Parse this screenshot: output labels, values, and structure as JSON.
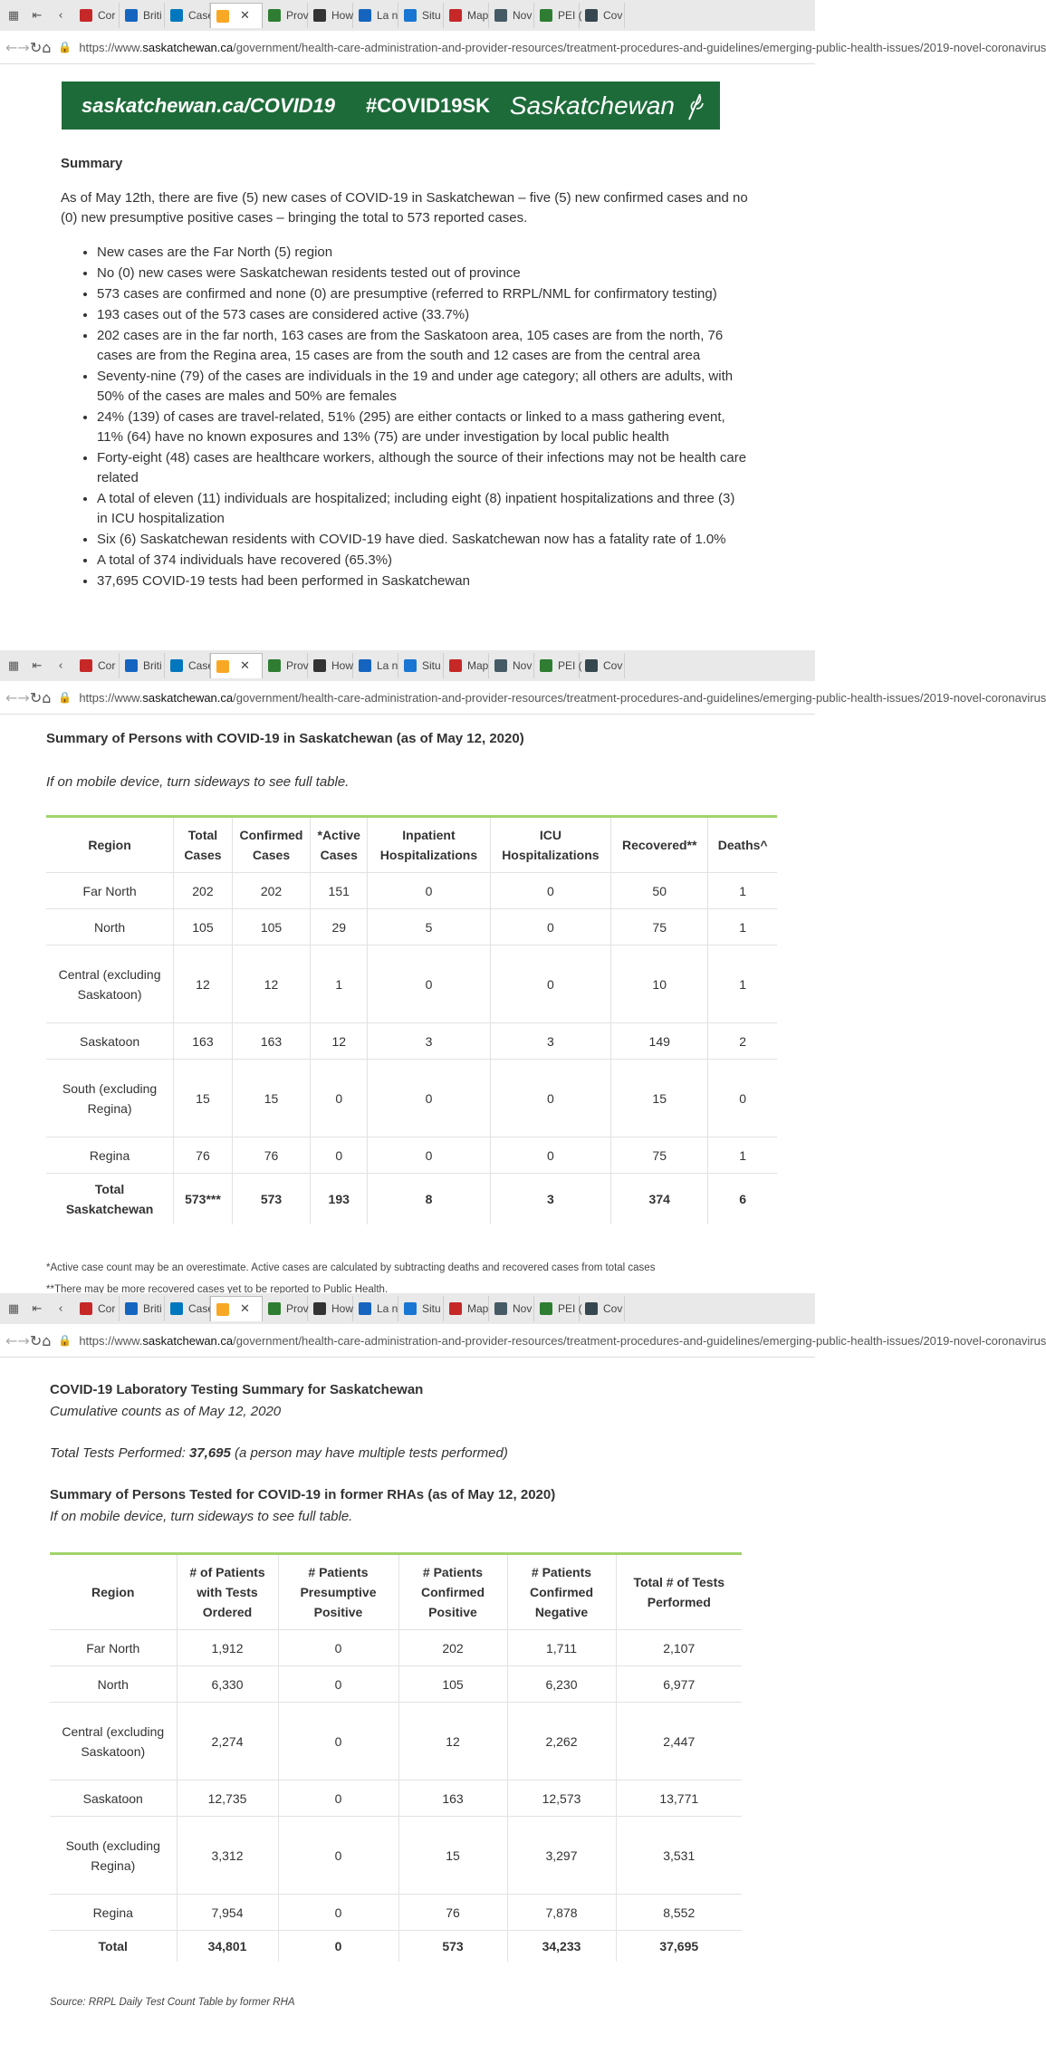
{
  "browser": {
    "tabs": [
      {
        "label": "Cor",
        "color": "#c62828"
      },
      {
        "label": "Briti",
        "color": "#1565c0"
      },
      {
        "label": "Case",
        "color": "#0277bd"
      },
      {
        "label": "",
        "color": "#f9a825",
        "active": true
      },
      {
        "label": "Prov",
        "color": "#2e7d32"
      },
      {
        "label": "How",
        "color": "#333333"
      },
      {
        "label": "La n",
        "color": "#1565c0"
      },
      {
        "label": "Situ",
        "color": "#1976d2"
      },
      {
        "label": "Map",
        "color": "#c62828"
      },
      {
        "label": "Nov",
        "color": "#455a64"
      },
      {
        "label": "PEI (",
        "color": "#2e7d32"
      },
      {
        "label": "Cov",
        "color": "#37474f"
      }
    ],
    "url_scheme": "https://www.",
    "url_domain": "saskatchewan.ca",
    "url_path": "/government/health-care-administration-and-provider-resources/treatment-procedures-and-guidelines/emerging-public-health-issues/2019-novel-coronavirus"
  },
  "banner": {
    "url_text": "saskatchewan.ca/COVID19",
    "hashtag": "#COVID19SK",
    "brand": "Saskatchewan"
  },
  "summary": {
    "title": "Summary",
    "intro": "As of May 12th, there are five (5) new cases of COVID-19 in Saskatchewan – five (5) new confirmed cases and no (0) new presumptive positive cases – bringing the total to 573 reported cases.",
    "bullets": [
      "New cases are the Far North (5) region",
      "No (0) new cases were Saskatchewan residents tested out of province",
      "573 cases are confirmed and none (0) are presumptive (referred to RRPL/NML for confirmatory testing)",
      "193 cases out of the 573 cases are considered active (33.7%)",
      "202 cases are in the far north, 163 cases are from the Saskatoon area, 105 cases are from the north, 76 cases are from the Regina area, 15 cases are from the south and 12 cases are from the central area",
      "Seventy-nine (79) of the cases are individuals in the 19 and under age category; all others are adults, with 50% of the cases are males and 50% are females",
      "24% (139) of cases are travel-related, 51% (295) are either contacts or linked to a mass gathering event, 11% (64) have no known exposures and 13% (75) are under investigation by local public health",
      "Forty-eight (48) cases are healthcare workers, although the source of their infections may not be health care related",
      "A total of eleven (11) individuals are hospitalized; including eight (8) inpatient hospitalizations and three (3) in ICU hospitalization",
      "Six (6) Saskatchewan residents with COVID-19 have died. Saskatchewan now has a fatality rate of 1.0%",
      "A total of 374 individuals have recovered (65.3%)",
      "37,695 COVID-19 tests had been performed in Saskatchewan"
    ]
  },
  "cases_table": {
    "title": "Summary of Persons with COVID-19 in Saskatchewan (as of May 12, 2020)",
    "mobile_note": "If on mobile device, turn sideways to see full table.",
    "headers": [
      "Region",
      "Total Cases",
      "Confirmed Cases",
      "*Active Cases",
      "Inpatient Hospitalizations",
      "ICU Hospitalizations",
      "Recovered**",
      "Deaths^"
    ],
    "rows": [
      [
        "Far North",
        "202",
        "202",
        "151",
        "0",
        "0",
        "50",
        "1"
      ],
      [
        "North",
        "105",
        "105",
        "29",
        "5",
        "0",
        "75",
        "1"
      ],
      [
        "Central (excluding Saskatoon)",
        "12",
        "12",
        "1",
        "0",
        "0",
        "10",
        "1"
      ],
      [
        "Saskatoon",
        "163",
        "163",
        "12",
        "3",
        "3",
        "149",
        "2"
      ],
      [
        "South (excluding Regina)",
        "15",
        "15",
        "0",
        "0",
        "0",
        "15",
        "0"
      ],
      [
        "Regina",
        "76",
        "76",
        "0",
        "0",
        "0",
        "75",
        "1"
      ]
    ],
    "total": [
      "Total Saskatchewan",
      "573***",
      "573",
      "193",
      "8",
      "3",
      "374",
      "6"
    ],
    "footnote1": "*Active case count may be an overestimate. Active cases are calculated by subtracting deaths and recovered cases from total cases",
    "footnote2": "**There may be more recovered cases yet to be reported to Public Health."
  },
  "lab": {
    "title": "COVID-19 Laboratory Testing Summary for Saskatchewan",
    "cumulative": "Cumulative counts as of May 12, 2020",
    "tests_label": "Total Tests Performed: ",
    "tests_value": "37,695",
    "tests_note": " (a person may have multiple tests performed)",
    "table_title": "Summary of Persons Tested for COVID-19 in former RHAs (as of May 12, 2020)",
    "mobile_note": "If on mobile device, turn sideways to see full table.",
    "headers": [
      "Region",
      "# of Patients with Tests Ordered",
      "# Patients Presumptive Positive",
      "# Patients Confirmed Positive",
      "# Patients Confirmed Negative",
      "Total # of Tests Performed"
    ],
    "rows": [
      [
        "Far North",
        "1,912",
        "0",
        "202",
        "1,711",
        "2,107"
      ],
      [
        "North",
        "6,330",
        "0",
        "105",
        "6,230",
        "6,977"
      ],
      [
        "Central (excluding Saskatoon)",
        "2,274",
        "0",
        "12",
        "2,262",
        "2,447"
      ],
      [
        "Saskatoon",
        "12,735",
        "0",
        "163",
        "12,573",
        "13,771"
      ],
      [
        "South (excluding Regina)",
        "3,312",
        "0",
        "15",
        "3,297",
        "3,531"
      ],
      [
        "Regina",
        "7,954",
        "0",
        "76",
        "7,878",
        "8,552"
      ]
    ],
    "total": [
      "Total",
      "34,801",
      "0",
      "573",
      "34,233",
      "37,695"
    ],
    "source": "Source: RRPL Daily Test Count Table by former RHA"
  }
}
